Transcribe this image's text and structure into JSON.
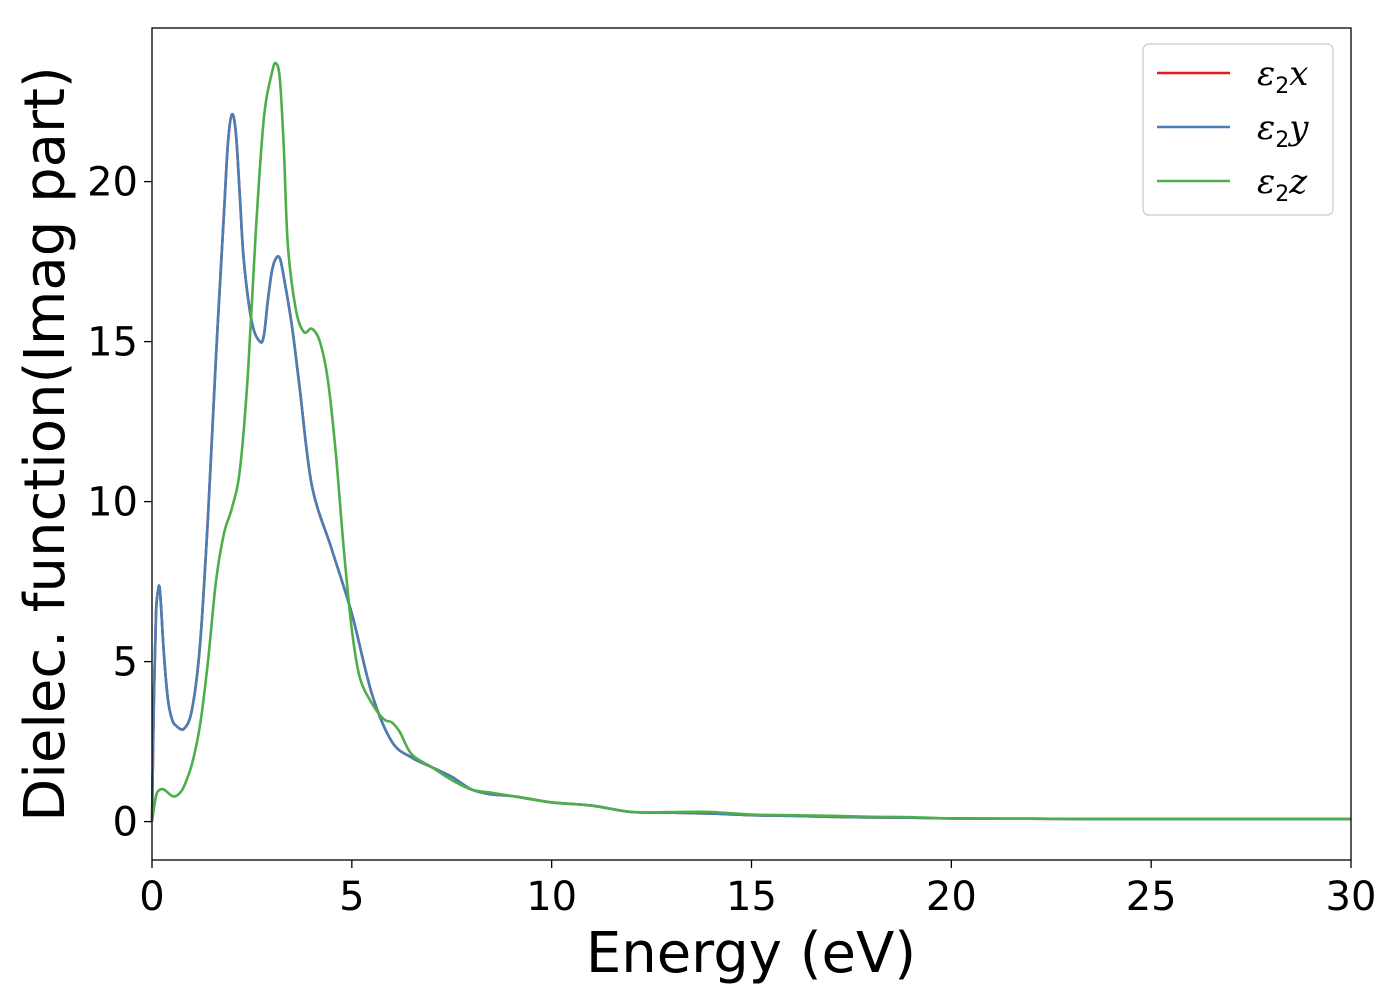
{
  "chart_data": {
    "type": "line",
    "title": "",
    "xlabel": "Energy (eV)",
    "ylabel": "Dielec. function(Imag part)",
    "xlim": [
      0,
      30
    ],
    "ylim": [
      -1.2,
      24.8
    ],
    "xticks": [
      0,
      5,
      10,
      15,
      20,
      25,
      30
    ],
    "yticks": [
      0,
      5,
      10,
      15,
      20
    ],
    "grid": false,
    "legend_position": "top-right",
    "series": [
      {
        "name": "ε2x",
        "name_symbol": "ε",
        "name_sub": "2",
        "name_suffix": "x",
        "color": "#e41a1c",
        "x": [
          0,
          0.05,
          0.1,
          0.15,
          0.2,
          0.3,
          0.4,
          0.5,
          0.6,
          0.8,
          1.0,
          1.2,
          1.4,
          1.6,
          1.8,
          1.9,
          2.0,
          2.1,
          2.2,
          2.3,
          2.5,
          2.7,
          2.8,
          2.9,
          3.0,
          3.1,
          3.2,
          3.3,
          3.5,
          3.7,
          4.0,
          4.5,
          5.0,
          5.5,
          6.0,
          6.5,
          7.0,
          7.5,
          8.0,
          8.5,
          9.0,
          9.5,
          10,
          11,
          12,
          13,
          14,
          15,
          16,
          17,
          18,
          19,
          20,
          22,
          24,
          26,
          28,
          30
        ],
        "y": [
          0,
          4.0,
          6.5,
          7.2,
          7.2,
          5.2,
          3.8,
          3.2,
          3.0,
          2.9,
          3.5,
          5.5,
          9.5,
          14.5,
          19.0,
          21.2,
          22.1,
          21.5,
          19.5,
          17.5,
          15.6,
          15.0,
          15.2,
          16.3,
          17.2,
          17.6,
          17.6,
          17.0,
          15.5,
          13.5,
          10.5,
          8.5,
          6.5,
          4.0,
          2.5,
          2.0,
          1.7,
          1.4,
          1.0,
          0.85,
          0.8,
          0.7,
          0.6,
          0.5,
          0.3,
          0.28,
          0.25,
          0.2,
          0.18,
          0.15,
          0.13,
          0.12,
          0.1,
          0.09,
          0.08,
          0.08,
          0.08,
          0.08
        ]
      },
      {
        "name": "ε2y",
        "name_symbol": "ε",
        "name_sub": "2",
        "name_suffix": "y",
        "color": "#4a7fb5",
        "x": [
          0,
          0.05,
          0.1,
          0.15,
          0.2,
          0.3,
          0.4,
          0.5,
          0.6,
          0.8,
          1.0,
          1.2,
          1.4,
          1.6,
          1.8,
          1.9,
          2.0,
          2.1,
          2.2,
          2.3,
          2.5,
          2.7,
          2.8,
          2.9,
          3.0,
          3.1,
          3.2,
          3.3,
          3.5,
          3.7,
          4.0,
          4.5,
          5.0,
          5.5,
          6.0,
          6.5,
          7.0,
          7.5,
          8.0,
          8.5,
          9.0,
          9.5,
          10,
          11,
          12,
          13,
          14,
          15,
          16,
          17,
          18,
          19,
          20,
          22,
          24,
          26,
          28,
          30
        ],
        "y": [
          0,
          4.0,
          6.5,
          7.2,
          7.2,
          5.2,
          3.8,
          3.2,
          3.0,
          2.9,
          3.5,
          5.5,
          9.5,
          14.5,
          19.0,
          21.2,
          22.1,
          21.5,
          19.5,
          17.5,
          15.6,
          15.0,
          15.2,
          16.3,
          17.2,
          17.6,
          17.6,
          17.0,
          15.5,
          13.5,
          10.5,
          8.5,
          6.5,
          4.0,
          2.5,
          2.0,
          1.7,
          1.4,
          1.0,
          0.85,
          0.8,
          0.7,
          0.6,
          0.5,
          0.3,
          0.28,
          0.25,
          0.2,
          0.18,
          0.15,
          0.13,
          0.12,
          0.1,
          0.09,
          0.08,
          0.08,
          0.08,
          0.08
        ]
      },
      {
        "name": "ε2z",
        "name_symbol": "ε",
        "name_sub": "2",
        "name_suffix": "z",
        "color": "#4daf4a",
        "x": [
          0,
          0.1,
          0.2,
          0.3,
          0.4,
          0.5,
          0.6,
          0.7,
          0.8,
          1.0,
          1.2,
          1.4,
          1.6,
          1.8,
          2.0,
          2.2,
          2.4,
          2.6,
          2.8,
          3.0,
          3.1,
          3.2,
          3.3,
          3.4,
          3.6,
          3.8,
          4.0,
          4.2,
          4.4,
          4.6,
          4.8,
          5.0,
          5.2,
          5.5,
          5.8,
          6.0,
          6.2,
          6.5,
          7.0,
          7.5,
          8.0,
          8.5,
          9.0,
          10,
          11,
          12,
          13,
          14,
          15,
          16,
          17,
          18,
          19,
          20,
          22,
          24,
          26,
          28,
          30
        ],
        "y": [
          0,
          0.8,
          1.0,
          1.0,
          0.9,
          0.8,
          0.8,
          0.9,
          1.1,
          1.8,
          3.0,
          5.0,
          7.5,
          9.0,
          9.8,
          11.0,
          14.0,
          18.5,
          22.0,
          23.4,
          23.7,
          23.2,
          21.0,
          18.0,
          16.0,
          15.3,
          15.4,
          15.0,
          13.8,
          11.5,
          8.5,
          6.0,
          4.5,
          3.7,
          3.2,
          3.1,
          2.8,
          2.1,
          1.7,
          1.3,
          1.0,
          0.9,
          0.8,
          0.6,
          0.5,
          0.3,
          0.3,
          0.3,
          0.22,
          0.2,
          0.18,
          0.15,
          0.14,
          0.1,
          0.09,
          0.08,
          0.08,
          0.08,
          0.08
        ]
      }
    ]
  }
}
